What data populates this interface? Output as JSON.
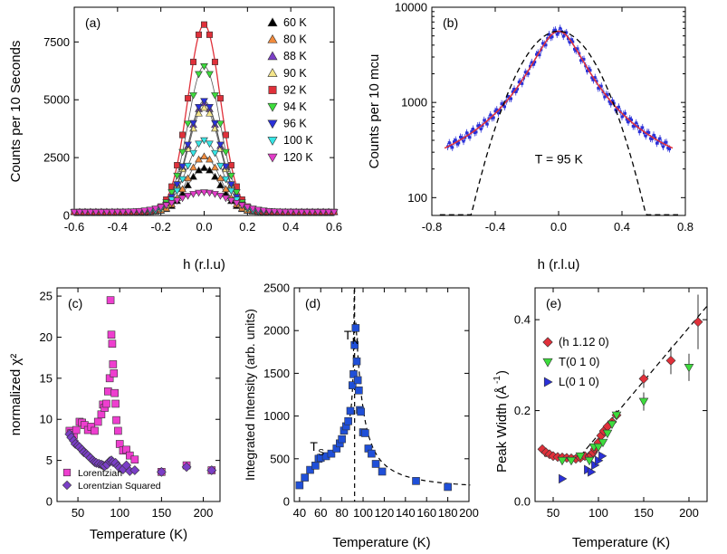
{
  "figure": "Five-panel scientific figure",
  "chart_data": [
    {
      "id": "a",
      "panel_label": "(a)",
      "type": "line",
      "xlabel": "h (r.l.u)",
      "ylabel": "Counts per 10 Seconds",
      "xlim": [
        -0.6,
        0.6
      ],
      "ylim": [
        0,
        9000
      ],
      "xticks": [
        -0.6,
        -0.4,
        -0.2,
        0.0,
        0.2,
        0.4,
        0.6
      ],
      "xtick_labels": [
        "-0.6",
        "-0.4",
        "-0.2",
        "0.0",
        "0.2",
        "0.4",
        "0.6"
      ],
      "yticks": [
        0,
        2500,
        5000,
        7500
      ],
      "ytick_labels": [
        "0",
        "2500",
        "5000",
        "7500"
      ],
      "legend_position": "top-right",
      "series": [
        {
          "name": "60 K",
          "marker": "triangle-up",
          "color": "#000000",
          "amplitude": 1900,
          "width": 0.075,
          "background": 150
        },
        {
          "name": "80 K",
          "marker": "triangle-up",
          "color": "#f08a3c",
          "amplitude": 2400,
          "width": 0.075,
          "background": 150
        },
        {
          "name": "88 K",
          "marker": "triangle-up",
          "color": "#7b3fc7",
          "amplitude": 4700,
          "width": 0.075,
          "background": 150
        },
        {
          "name": "90 K",
          "marker": "triangle-up",
          "color": "#f4e58a",
          "amplitude": 4500,
          "width": 0.075,
          "background": 150
        },
        {
          "name": "92 K",
          "marker": "square",
          "color": "#e0303a",
          "amplitude": 8100,
          "width": 0.075,
          "background": 150
        },
        {
          "name": "94 K",
          "marker": "triangle-down",
          "color": "#3ddc3d",
          "amplitude": 6300,
          "width": 0.075,
          "background": 150
        },
        {
          "name": "96 K",
          "marker": "triangle-down",
          "color": "#2a30d8",
          "amplitude": 4800,
          "width": 0.075,
          "background": 150
        },
        {
          "name": "100 K",
          "marker": "triangle-down",
          "color": "#36e6e6",
          "amplitude": 3100,
          "width": 0.08,
          "background": 150
        },
        {
          "name": "120 K",
          "marker": "triangle-down",
          "color": "#e23cc8",
          "amplitude": 850,
          "width": 0.12,
          "background": 150
        }
      ]
    },
    {
      "id": "b",
      "panel_label": "(b)",
      "type": "line",
      "xlabel": "h (r.l.u)",
      "ylabel": "Counts per 10 mcu",
      "yscale": "log",
      "xlim": [
        -0.8,
        0.8
      ],
      "ylim": [
        65,
        10000
      ],
      "xticks": [
        -0.8,
        -0.4,
        0.0,
        0.4,
        0.8
      ],
      "xtick_labels": [
        "-0.8",
        "-0.4",
        "0.0",
        "0.4",
        "0.8"
      ],
      "yticks": [
        100,
        1000,
        10000
      ],
      "ytick_labels": [
        "100",
        "1000",
        "10000"
      ],
      "annotation": "T = 95 K",
      "data_color": "#2a30d8",
      "fit_color": "#e0303a",
      "peak": 5600,
      "data_xrange": [
        -0.7,
        0.7
      ],
      "edge_value": 135
    },
    {
      "id": "c",
      "panel_label": "(c)",
      "type": "scatter",
      "xlabel": "Temperature (K)",
      "ylabel": "normalized χ²",
      "xlim": [
        25,
        220
      ],
      "ylim": [
        0,
        26
      ],
      "xticks": [
        50,
        100,
        150,
        200
      ],
      "xtick_labels": [
        "50",
        "100",
        "150",
        "200"
      ],
      "yticks": [
        0,
        5,
        10,
        15,
        20,
        25
      ],
      "ytick_labels": [
        "0",
        "5",
        "10",
        "15",
        "20",
        "25"
      ],
      "legend_position": "bottom-left",
      "series": [
        {
          "name": "Lorentzian",
          "marker": "square",
          "color": "#ee3ecf",
          "x": [
            40,
            42,
            45,
            48,
            52,
            55,
            58,
            62,
            66,
            70,
            74,
            78,
            80,
            82,
            84,
            86,
            88,
            89,
            90,
            91,
            92,
            93,
            94,
            95,
            96,
            98,
            100,
            104,
            108,
            112,
            118,
            150,
            180,
            210
          ],
          "y": [
            8.6,
            8.3,
            8.1,
            8.7,
            9.7,
            9.6,
            9.3,
            8.7,
            9.1,
            8.6,
            9.7,
            10.6,
            11.8,
            11.4,
            11.9,
            13.4,
            15.0,
            24.5,
            20.3,
            19.2,
            16.7,
            15.6,
            13.2,
            11.9,
            9.9,
            8.6,
            7.0,
            6.2,
            6.3,
            5.6,
            5.1,
            3.6,
            4.4,
            3.8
          ]
        },
        {
          "name": "Lorentzian Squared",
          "marker": "diamond",
          "color": "#7b3fc7",
          "x": [
            40,
            42,
            45,
            47,
            50,
            52,
            55,
            57,
            60,
            62,
            65,
            68,
            70,
            72,
            75,
            78,
            80,
            82,
            85,
            88,
            90,
            92,
            95,
            98,
            100,
            104,
            108,
            112,
            118,
            150,
            180,
            210
          ],
          "y": [
            8.2,
            7.8,
            7.4,
            7.0,
            6.8,
            6.6,
            6.3,
            6.0,
            5.8,
            5.6,
            5.3,
            5.0,
            4.8,
            4.7,
            4.6,
            4.5,
            4.4,
            4.3,
            4.5,
            4.9,
            5.0,
            4.8,
            4.7,
            4.3,
            4.1,
            3.9,
            4.4,
            3.7,
            3.8,
            3.6,
            4.2,
            3.8
          ]
        }
      ]
    },
    {
      "id": "d",
      "panel_label": "(d)",
      "type": "scatter",
      "xlabel": "Temperature (K)",
      "ylabel": "Integrated Intensity (arb. units)",
      "xlim": [
        35,
        200
      ],
      "ylim": [
        0,
        2500
      ],
      "xticks": [
        40,
        60,
        80,
        100,
        120,
        140,
        160,
        180,
        200
      ],
      "xtick_labels": [
        "40",
        "60",
        "80",
        "100",
        "120",
        "140",
        "160",
        "180",
        "200"
      ],
      "yticks": [
        0,
        500,
        1000,
        1500,
        2000,
        2500
      ],
      "ytick_labels": [
        "0",
        "500",
        "1000",
        "1500",
        "2000",
        "2500"
      ],
      "color": "#1f4fd8",
      "x": [
        40,
        45,
        50,
        55,
        58,
        60,
        65,
        70,
        75,
        78,
        80,
        82,
        84,
        86,
        88,
        90,
        91,
        92,
        93,
        94,
        95,
        96,
        97,
        98,
        100,
        102,
        105,
        108,
        112,
        118,
        150,
        180
      ],
      "y": [
        190,
        280,
        370,
        420,
        500,
        510,
        530,
        560,
        620,
        680,
        730,
        830,
        880,
        940,
        1060,
        1360,
        1490,
        1830,
        2030,
        1640,
        1420,
        1300,
        1070,
        1050,
        810,
        800,
        620,
        560,
        440,
        350,
        240,
        170
      ],
      "annotations": [
        {
          "base": "T",
          "sub": "N",
          "x": 87,
          "y": 2000
        },
        {
          "base": "T",
          "sub": "S",
          "x": 55,
          "y": 700
        }
      ],
      "transition_temperature": 92
    },
    {
      "id": "e",
      "panel_label": "(e)",
      "type": "scatter",
      "xlabel": "Temperature (K)",
      "ylabel_base": "Peak Width (Å",
      "ylabel_sup": "-1",
      "ylabel_tail": ")",
      "xlim": [
        30,
        220
      ],
      "ylim": [
        0,
        0.47
      ],
      "xticks": [
        50,
        100,
        150,
        200
      ],
      "xtick_labels": [
        "50",
        "100",
        "150",
        "200"
      ],
      "yticks": [
        0.0,
        0.2,
        0.4
      ],
      "ytick_labels": [
        "0.0",
        "0.2",
        "0.4"
      ],
      "legend_position": "top-left",
      "series": [
        {
          "name": "(h 1.12 0)",
          "marker": "diamond",
          "color": "#e0303a",
          "x": [
            38,
            42,
            46,
            50,
            55,
            60,
            65,
            70,
            75,
            80,
            85,
            90,
            92,
            94,
            96,
            98,
            100,
            103,
            106,
            110,
            115,
            120,
            150,
            180,
            210
          ],
          "y": [
            0.115,
            0.108,
            0.104,
            0.1,
            0.098,
            0.097,
            0.096,
            0.095,
            0.094,
            0.096,
            0.1,
            0.1,
            0.102,
            0.108,
            0.115,
            0.12,
            0.13,
            0.145,
            0.155,
            0.165,
            0.175,
            0.19,
            0.27,
            0.31,
            0.395
          ],
          "err": [
            0.005,
            0.005,
            0.005,
            0.005,
            0.005,
            0.005,
            0.005,
            0.005,
            0.005,
            0.005,
            0.005,
            0.005,
            0.005,
            0.005,
            0.005,
            0.006,
            0.006,
            0.006,
            0.007,
            0.008,
            0.01,
            0.01,
            0.02,
            0.03,
            0.06
          ]
        },
        {
          "name": "T(0 1 0)",
          "marker": "triangle-down",
          "color": "#3ddc3d",
          "x": [
            60,
            70,
            80,
            90,
            95,
            100,
            105,
            110,
            115,
            120,
            150,
            200
          ],
          "y": [
            0.09,
            0.09,
            0.1,
            0.09,
            0.12,
            0.12,
            0.13,
            0.15,
            0.17,
            0.19,
            0.22,
            0.295
          ],
          "err": [
            0.005,
            0.005,
            0.005,
            0.006,
            0.006,
            0.006,
            0.007,
            0.008,
            0.009,
            0.01,
            0.02,
            0.03
          ]
        },
        {
          "name": "L(0 1 0)",
          "marker": "triangle-right",
          "color": "#2a30d8",
          "x": [
            60,
            88,
            92,
            96,
            100,
            104
          ],
          "y": [
            0.05,
            0.07,
            0.065,
            0.08,
            0.09,
            0.1
          ],
          "err": [
            0.005,
            0.005,
            0.005,
            0.005,
            0.006,
            0.006
          ]
        }
      ]
    }
  ]
}
